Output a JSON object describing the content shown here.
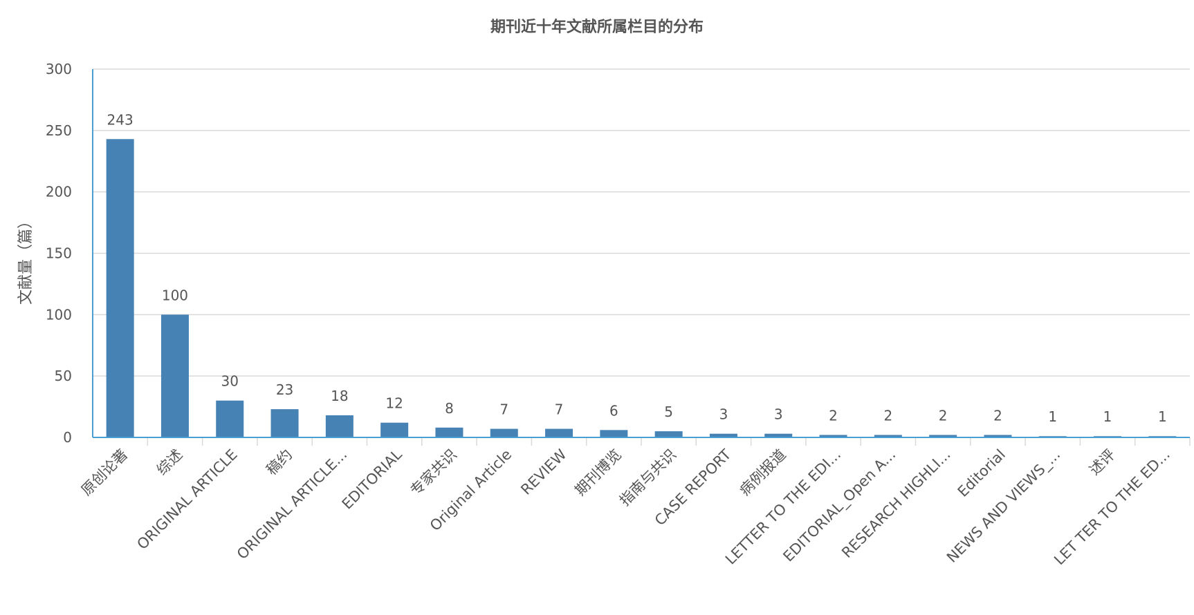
{
  "chart_data": {
    "type": "bar",
    "title": "期刊近十年文献所属栏目的分布",
    "ylabel": "文献量（篇）",
    "xlabel": "",
    "ylim": [
      0,
      300
    ],
    "yticks": [
      0,
      50,
      100,
      150,
      200,
      250,
      300
    ],
    "grid": true,
    "categories": [
      "原创论著",
      "综述",
      "ORIGINAL ARTICLE",
      "稿约",
      "ORIGINAL ARTICLE...",
      "EDITORIAL",
      "专家共识",
      "Original Article",
      "REVIEW",
      "期刊博览",
      "指南与共识",
      "CASE REPORT",
      "病例报道",
      "LETTER TO THE EDI...",
      "EDITORIAL_Open A...",
      "RESEARCH HIGHLI...",
      "Editorial",
      "NEWS AND VIEWS_...",
      "述评",
      "LET TER TO THE ED..."
    ],
    "values": [
      243,
      100,
      30,
      23,
      18,
      12,
      8,
      7,
      7,
      6,
      5,
      3,
      3,
      2,
      2,
      2,
      2,
      1,
      1,
      1
    ],
    "colors": {
      "bar": "#4682b4",
      "axis": "#4a9fd0",
      "grid": "#d9d9d9",
      "text": "#555555"
    }
  }
}
